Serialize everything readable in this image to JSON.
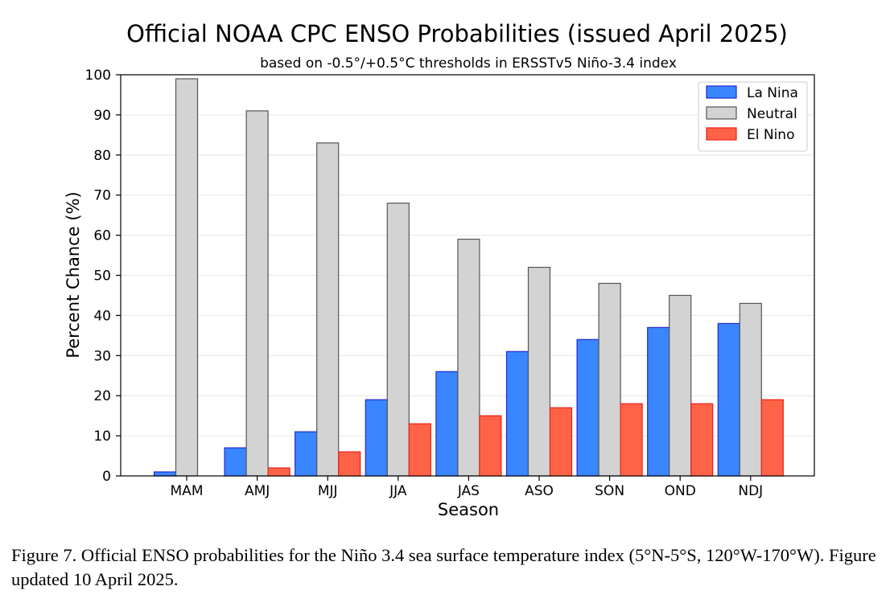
{
  "chart_data": {
    "type": "bar",
    "title": "Official NOAA CPC ENSO Probabilities (issued April 2025)",
    "subtitle": "based on -0.5°/+0.5°C thresholds in ERSSTv5 Niño-3.4 index",
    "xlabel": "Season",
    "ylabel": "Percent Chance (%)",
    "ylim": [
      0,
      100
    ],
    "yticks": [
      0,
      10,
      20,
      30,
      40,
      50,
      60,
      70,
      80,
      90,
      100
    ],
    "grid": "horizontal",
    "legend_position": "top-right",
    "categories": [
      "MAM",
      "AMJ",
      "MJJ",
      "JJA",
      "JAS",
      "ASO",
      "SON",
      "OND",
      "NDJ"
    ],
    "series": [
      {
        "name": "La Nina",
        "color": "#3a86ff",
        "edge": "#1f2ad0",
        "values": [
          1,
          7,
          11,
          19,
          26,
          31,
          34,
          37,
          38
        ]
      },
      {
        "name": "Neutral",
        "color": "#d3d3d3",
        "edge": "#555555",
        "values": [
          99,
          91,
          83,
          68,
          59,
          52,
          48,
          45,
          43
        ]
      },
      {
        "name": "El Nino",
        "color": "#ff6347",
        "edge": "#e8201a",
        "values": [
          0,
          2,
          6,
          13,
          15,
          17,
          18,
          18,
          19
        ]
      }
    ]
  },
  "caption": "Figure 7. Official ENSO probabilities for the Niño 3.4 sea surface temperature index (5°N-5°S, 120°W-170°W). Figure updated 10 April 2025."
}
